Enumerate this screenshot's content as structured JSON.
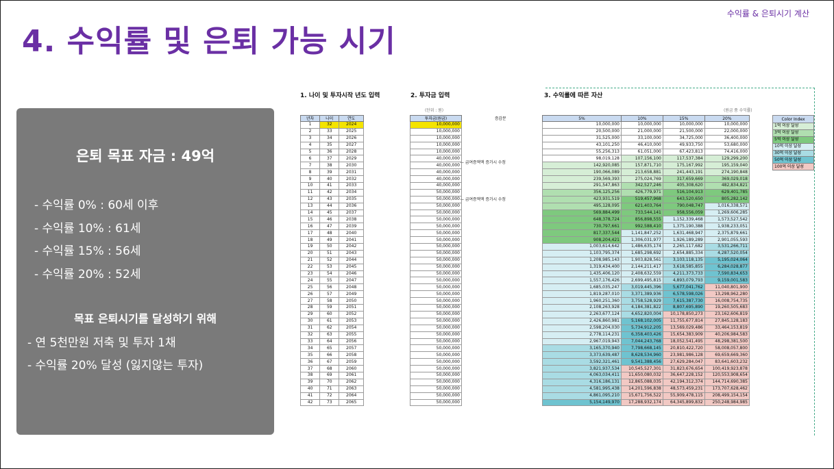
{
  "header": {
    "title": "4. 수익률 및 은퇴 가능 시기",
    "corner_label": "수익률 & 은퇴시기 계산"
  },
  "panel": {
    "goal": "은퇴 목표 자금 : 49억",
    "rates": [
      "- 수익률   0% : 60세 이후",
      "- 수익률 10% : 61세",
      "- 수익률 15% : 56세",
      "- 수익률 20% : 52세"
    ],
    "subtitle": "목표 은퇴시기를 달성하기 위해",
    "actions": [
      "- 연 5천만원 저축 및 투자 1채",
      "- 수익률 20% 달성 (잃지않는 투자)"
    ]
  },
  "sheet": {
    "sections": [
      "1. 나이 및 투자시작 년도 입력",
      "2. 투자금 입력",
      "3. 수익률에 따른 자산"
    ],
    "unit_won": "(단위 : 원)",
    "unit_rate": "(원금 중 수익률)",
    "increase_label": "증감분",
    "notes": [
      "← 급여증액액 증가시 수정",
      "← 급여증액액 증가시 수정"
    ],
    "left_headers": [
      "년차",
      "나이",
      "연도"
    ],
    "invest_header": "투자금(원금)",
    "rate_headers": [
      "5%",
      "10%",
      "15%",
      "20%"
    ],
    "legend_title": "Color Index",
    "legend": [
      "1억 이상 달성",
      "3억 이상 달성",
      "5억 이상 달성",
      "10억 이상 달성",
      "30억 이상 달성",
      "50억 이상 달성",
      "100억 이상 달성"
    ],
    "legend_colors": [
      "#d6eed6",
      "#b0dfb0",
      "#7ec97e",
      "#d6eef3",
      "#a9dce4",
      "#6fc3d0",
      "#f2c9c4"
    ],
    "rows": [
      [
        "1",
        "32",
        "2024",
        "10,000,000",
        "10,000,000",
        "10,000,000",
        "10,000,000",
        "10,000,000"
      ],
      [
        "2",
        "33",
        "2025",
        "10,000,000",
        "20,500,000",
        "21,000,000",
        "21,500,000",
        "22,000,000"
      ],
      [
        "3",
        "34",
        "2026",
        "10,000,000",
        "31,525,000",
        "33,100,000",
        "34,725,000",
        "36,400,000"
      ],
      [
        "4",
        "35",
        "2027",
        "10,000,000",
        "43,101,250",
        "46,410,000",
        "49,933,750",
        "53,680,000"
      ],
      [
        "5",
        "36",
        "2028",
        "10,000,000",
        "55,256,313",
        "61,051,000",
        "67,423,813",
        "74,416,000"
      ],
      [
        "6",
        "37",
        "2029",
        "40,000,000",
        "98,019,128",
        "107,156,100",
        "117,537,384",
        "129,299,200"
      ],
      [
        "7",
        "38",
        "2030",
        "40,000,000",
        "142,920,085",
        "157,871,710",
        "175,167,992",
        "195,159,040"
      ],
      [
        "8",
        "39",
        "2031",
        "40,000,000",
        "190,066,089",
        "213,658,881",
        "241,443,191",
        "274,190,848"
      ],
      [
        "9",
        "40",
        "2032",
        "40,000,000",
        "239,569,393",
        "275,024,769",
        "317,659,669",
        "369,029,018"
      ],
      [
        "10",
        "41",
        "2033",
        "40,000,000",
        "291,547,863",
        "342,527,246",
        "405,308,620",
        "482,834,821"
      ],
      [
        "11",
        "42",
        "2034",
        "50,000,000",
        "356,125,256",
        "426,779,971",
        "516,104,913",
        "629,401,785"
      ],
      [
        "12",
        "43",
        "2035",
        "50,000,000",
        "423,931,519",
        "519,457,968",
        "643,520,650",
        "805,282,142"
      ],
      [
        "13",
        "44",
        "2036",
        "50,000,000",
        "495,128,095",
        "621,403,764",
        "790,048,747",
        "1,016,338,571"
      ],
      [
        "14",
        "45",
        "2037",
        "50,000,000",
        "569,884,499",
        "733,544,141",
        "958,556,059",
        "1,269,606,285"
      ],
      [
        "15",
        "46",
        "2038",
        "50,000,000",
        "648,378,724",
        "856,898,555",
        "1,152,339,468",
        "1,573,527,542"
      ],
      [
        "16",
        "47",
        "2039",
        "50,000,000",
        "730,797,661",
        "992,588,410",
        "1,375,190,388",
        "1,938,233,051"
      ],
      [
        "17",
        "48",
        "2040",
        "50,000,000",
        "817,337,544",
        "1,141,847,252",
        "1,631,468,947",
        "2,375,879,661"
      ],
      [
        "18",
        "49",
        "2041",
        "50,000,000",
        "908,204,421",
        "1,306,031,977",
        "1,926,189,289",
        "2,901,055,593"
      ],
      [
        "19",
        "50",
        "2042",
        "50,000,000",
        "1,003,614,642",
        "1,486,635,174",
        "2,265,117,682",
        "3,531,266,711"
      ],
      [
        "20",
        "51",
        "2043",
        "50,000,000",
        "1,103,795,374",
        "1,685,298,692",
        "2,654,885,334",
        "4,287,520,054"
      ],
      [
        "21",
        "52",
        "2044",
        "50,000,000",
        "1,208,985,143",
        "1,903,828,561",
        "3,103,118,135",
        "5,195,024,064"
      ],
      [
        "22",
        "53",
        "2045",
        "50,000,000",
        "1,319,434,400",
        "2,144,211,417",
        "3,618,585,855",
        "6,284,028,877"
      ],
      [
        "23",
        "54",
        "2046",
        "50,000,000",
        "1,435,406,120",
        "2,408,632,559",
        "4,211,373,733",
        "7,590,834,653"
      ],
      [
        "24",
        "55",
        "2047",
        "50,000,000",
        "1,557,176,426",
        "2,699,495,815",
        "4,893,079,793",
        "9,159,001,583"
      ],
      [
        "25",
        "56",
        "2048",
        "50,000,000",
        "1,685,035,247",
        "3,019,445,396",
        "5,677,041,762",
        "11,040,801,900"
      ],
      [
        "26",
        "57",
        "2049",
        "50,000,000",
        "1,819,287,010",
        "3,371,389,936",
        "6,578,598,026",
        "13,298,962,280"
      ],
      [
        "27",
        "58",
        "2050",
        "50,000,000",
        "1,960,251,360",
        "3,758,528,929",
        "7,615,387,730",
        "16,008,754,735"
      ],
      [
        "28",
        "59",
        "2051",
        "50,000,000",
        "2,108,263,928",
        "4,184,381,822",
        "8,807,695,890",
        "19,260,505,683"
      ],
      [
        "29",
        "60",
        "2052",
        "50,000,000",
        "2,263,677,124",
        "4,652,820,004",
        "10,178,850,273",
        "23,162,606,819"
      ],
      [
        "30",
        "61",
        "2053",
        "50,000,000",
        "2,426,860,981",
        "5,168,102,005",
        "11,755,677,814",
        "27,845,128,183"
      ],
      [
        "31",
        "62",
        "2054",
        "50,000,000",
        "2,598,204,030",
        "5,734,912,205",
        "13,569,029,486",
        "33,464,153,819"
      ],
      [
        "32",
        "63",
        "2055",
        "50,000,000",
        "2,778,114,231",
        "6,358,403,426",
        "15,654,383,909",
        "40,206,984,583"
      ],
      [
        "33",
        "64",
        "2056",
        "50,000,000",
        "2,967,019,943",
        "7,044,243,768",
        "18,052,541,495",
        "48,298,381,500"
      ],
      [
        "34",
        "65",
        "2057",
        "50,000,000",
        "3,165,370,940",
        "7,798,668,145",
        "20,810,422,720",
        "58,008,057,800"
      ],
      [
        "35",
        "66",
        "2058",
        "50,000,000",
        "3,373,639,487",
        "8,628,534,960",
        "23,981,986,128",
        "69,659,669,360"
      ],
      [
        "36",
        "67",
        "2059",
        "50,000,000",
        "3,592,321,461",
        "9,541,388,456",
        "27,629,284,047",
        "83,641,603,232"
      ],
      [
        "37",
        "68",
        "2060",
        "50,000,000",
        "3,821,937,534",
        "10,545,527,301",
        "31,823,676,654",
        "100,419,923,878"
      ],
      [
        "38",
        "69",
        "2061",
        "50,000,000",
        "4,063,034,411",
        "11,650,080,032",
        "36,647,228,152",
        "120,553,908,654"
      ],
      [
        "39",
        "70",
        "2062",
        "50,000,000",
        "4,316,186,131",
        "12,865,088,035",
        "42,194,312,374",
        "144,714,690,385"
      ],
      [
        "40",
        "71",
        "2063",
        "50,000,000",
        "4,581,995,438",
        "14,201,596,838",
        "48,573,459,231",
        "173,707,628,462"
      ],
      [
        "41",
        "72",
        "2064",
        "50,000,000",
        "4,861,095,210",
        "15,671,756,522",
        "55,909,478,115",
        "208,499,154,154"
      ],
      [
        "42",
        "73",
        "2065",
        "50,000,000",
        "5,154,149,970",
        "17,288,932,174",
        "64,345,899,832",
        "250,248,984,985"
      ]
    ]
  }
}
